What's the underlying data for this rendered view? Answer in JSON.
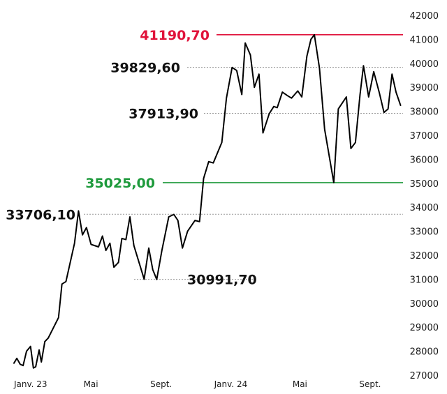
{
  "chart_data": {
    "type": "line",
    "title": "",
    "xlabel": "",
    "ylabel": "",
    "ylim": [
      26800,
      42200
    ],
    "y_ticks": [
      27000,
      28000,
      29000,
      30000,
      31000,
      32000,
      33000,
      34000,
      35000,
      36000,
      37000,
      38000,
      39000,
      40000,
      41000,
      42000
    ],
    "y_tick_labels": [
      "27000",
      "28000",
      "29000",
      "30000",
      "31000",
      "32000",
      "33000",
      "34000",
      "35000",
      "36000",
      "37000",
      "38000",
      "39000",
      "40000",
      "41000",
      "42000"
    ],
    "x_range": [
      "2023-01-01",
      "2024-10-31"
    ],
    "x_ticks": [
      {
        "date": "2023-01-01",
        "label": "Janv. 23"
      },
      {
        "date": "2023-05-01",
        "label": "Mai"
      },
      {
        "date": "2023-09-01",
        "label": "Sept."
      },
      {
        "date": "2024-01-01",
        "label": "Janv. 24"
      },
      {
        "date": "2024-05-01",
        "label": "Mai"
      },
      {
        "date": "2024-09-01",
        "label": "Sept."
      }
    ],
    "grid": false,
    "series": [
      {
        "color": "#000000",
        "points": [
          [
            "2023-01-01",
            27500
          ],
          [
            "2023-01-06",
            27700
          ],
          [
            "2023-01-12",
            27450
          ],
          [
            "2023-01-17",
            27400
          ],
          [
            "2023-01-23",
            28000
          ],
          [
            "2023-01-30",
            28200
          ],
          [
            "2023-02-04",
            27300
          ],
          [
            "2023-02-08",
            27350
          ],
          [
            "2023-02-14",
            28050
          ],
          [
            "2023-02-18",
            27550
          ],
          [
            "2023-02-24",
            28400
          ],
          [
            "2023-03-02",
            28550
          ],
          [
            "2023-03-20",
            29400
          ],
          [
            "2023-03-26",
            30800
          ],
          [
            "2023-04-02",
            30900
          ],
          [
            "2023-04-17",
            32500
          ],
          [
            "2023-04-24",
            33850
          ],
          [
            "2023-05-01",
            32850
          ],
          [
            "2023-05-08",
            33150
          ],
          [
            "2023-05-16",
            32450
          ],
          [
            "2023-05-29",
            32350
          ],
          [
            "2023-06-05",
            32800
          ],
          [
            "2023-06-11",
            32200
          ],
          [
            "2023-06-18",
            32500
          ],
          [
            "2023-06-25",
            31500
          ],
          [
            "2023-07-03",
            31700
          ],
          [
            "2023-07-09",
            32700
          ],
          [
            "2023-07-16",
            32650
          ],
          [
            "2023-07-23",
            33600
          ],
          [
            "2023-07-30",
            32400
          ],
          [
            "2023-08-17",
            31000
          ],
          [
            "2023-08-25",
            32300
          ],
          [
            "2023-09-01",
            31400
          ],
          [
            "2023-09-08",
            30991.7
          ],
          [
            "2023-09-17",
            32200
          ],
          [
            "2023-09-29",
            33600
          ],
          [
            "2023-10-08",
            33700
          ],
          [
            "2023-10-15",
            33450
          ],
          [
            "2023-10-23",
            32300
          ],
          [
            "2023-11-01",
            33000
          ],
          [
            "2023-11-14",
            33450
          ],
          [
            "2023-11-22",
            33400
          ],
          [
            "2023-11-29",
            35200
          ],
          [
            "2023-12-08",
            35900
          ],
          [
            "2023-12-16",
            35850
          ],
          [
            "2023-12-31",
            36700
          ],
          [
            "2024-01-08",
            38550
          ],
          [
            "2024-01-18",
            39829.6
          ],
          [
            "2024-01-26",
            39700
          ],
          [
            "2024-02-04",
            38700
          ],
          [
            "2024-02-10",
            40850
          ],
          [
            "2024-02-19",
            40350
          ],
          [
            "2024-02-26",
            39000
          ],
          [
            "2024-03-05",
            39550
          ],
          [
            "2024-03-12",
            37100
          ],
          [
            "2024-03-23",
            37900
          ],
          [
            "2024-03-31",
            38200
          ],
          [
            "2024-04-06",
            38150
          ],
          [
            "2024-04-15",
            38800
          ],
          [
            "2024-04-24",
            38650
          ],
          [
            "2024-05-01",
            38550
          ],
          [
            "2024-05-12",
            38850
          ],
          [
            "2024-05-19",
            38600
          ],
          [
            "2024-05-28",
            40300
          ],
          [
            "2024-06-04",
            41000
          ],
          [
            "2024-06-10",
            41190.7
          ],
          [
            "2024-06-19",
            39800
          ],
          [
            "2024-06-28",
            37250
          ],
          [
            "2024-07-14",
            35025
          ],
          [
            "2024-07-22",
            38100
          ],
          [
            "2024-08-05",
            38600
          ],
          [
            "2024-08-13",
            36450
          ],
          [
            "2024-08-21",
            36700
          ],
          [
            "2024-08-29",
            38700
          ],
          [
            "2024-09-04",
            39900
          ],
          [
            "2024-09-13",
            38600
          ],
          [
            "2024-09-22",
            39650
          ],
          [
            "2024-10-02",
            38750
          ],
          [
            "2024-10-10",
            37950
          ],
          [
            "2024-10-17",
            38100
          ],
          [
            "2024-10-24",
            39550
          ],
          [
            "2024-10-31",
            38800
          ],
          [
            "2024-11-08",
            38250
          ]
        ]
      }
    ],
    "reference_lines": [
      {
        "value": 41190.7,
        "label": "41190,70",
        "style": "solid",
        "color": "#e0123a",
        "label_class": "red"
      },
      {
        "value": 39829.6,
        "label": "39829,60",
        "style": "dashed",
        "color": "#9a9a9a",
        "label_class": "black"
      },
      {
        "value": 37913.9,
        "label": "37913,90",
        "style": "dashed",
        "color": "#9a9a9a",
        "label_class": "black"
      },
      {
        "value": 35025.0,
        "label": "35025,00",
        "style": "solid",
        "color": "#1e9a3c",
        "label_class": "green"
      },
      {
        "value": 33706.1,
        "label": "33706,10",
        "style": "dashed",
        "color": "#9a9a9a",
        "label_class": "black"
      },
      {
        "value": 30991.7,
        "label": "30991,70",
        "style": "dashed",
        "color": "#9a9a9a",
        "label_class": "black"
      }
    ]
  }
}
